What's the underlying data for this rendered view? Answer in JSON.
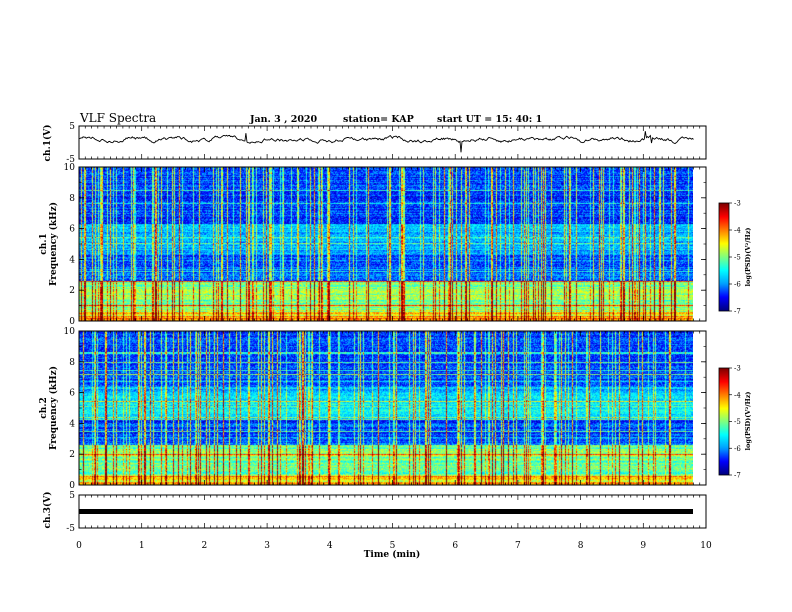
{
  "header": {
    "title": "VLF Spectra",
    "date": "Jan. 3 , 2020",
    "station": "station= KAP",
    "start_time": "start UT = 15: 40: 1"
  },
  "colors": {
    "spectrum_colormap": [
      "#000080",
      "#0000ff",
      "#00a0ff",
      "#00ffff",
      "#80ff80",
      "#ffff00",
      "#ff8000",
      "#ff0000",
      "#800000"
    ],
    "trace": "#000000"
  },
  "chart_data": [
    {
      "id": "ch1-waveform",
      "type": "line",
      "ylabel": "ch.1(V)",
      "ylim": [
        -5,
        5
      ],
      "yticks": [
        "5",
        "-5"
      ],
      "xlim": [
        0,
        10
      ],
      "series": [
        {
          "x_end": 9.8,
          "approx_level": 1.0,
          "approx_amplitude": 1.2
        }
      ]
    },
    {
      "id": "ch1-spectrogram",
      "type": "heatmap",
      "ylabel": "ch.1",
      "ylabel2": "Frequency (kHz)",
      "ylim": [
        0,
        10
      ],
      "yticks": [
        "0",
        "2",
        "4",
        "6",
        "8",
        "10"
      ],
      "xlim": [
        0,
        10
      ],
      "data_end_min": 9.8,
      "colorbar": {
        "label": "log(PSD)(V²/Hz)",
        "range": [
          -7,
          -3
        ],
        "ticks": [
          "-3",
          "-4",
          "-5",
          "-6",
          "-7"
        ]
      }
    },
    {
      "id": "ch2-spectrogram",
      "type": "heatmap",
      "ylabel": "ch.2",
      "ylabel2": "Frequency (kHz)",
      "ylim": [
        0,
        10
      ],
      "yticks": [
        "0",
        "2",
        "4",
        "6",
        "8",
        "10"
      ],
      "xlim": [
        0,
        10
      ],
      "data_end_min": 9.8,
      "colorbar": {
        "label": "log(PSD)(V²/Hz)",
        "range": [
          -7,
          -3
        ],
        "ticks": [
          "-3",
          "-4",
          "-5",
          "-6",
          "-7"
        ]
      }
    },
    {
      "id": "ch3-waveform",
      "type": "line",
      "ylabel": "ch.3(V)",
      "ylim": [
        -5,
        5
      ],
      "yticks": [
        "5",
        "-5"
      ],
      "xlim": [
        0,
        10
      ],
      "series": [
        {
          "x_end": 9.8,
          "approx_level": 0
        }
      ]
    }
  ],
  "x_axis": {
    "label": "Time (min)",
    "ticks": [
      "0",
      "1",
      "2",
      "3",
      "4",
      "5",
      "6",
      "7",
      "8",
      "9",
      "10"
    ]
  }
}
